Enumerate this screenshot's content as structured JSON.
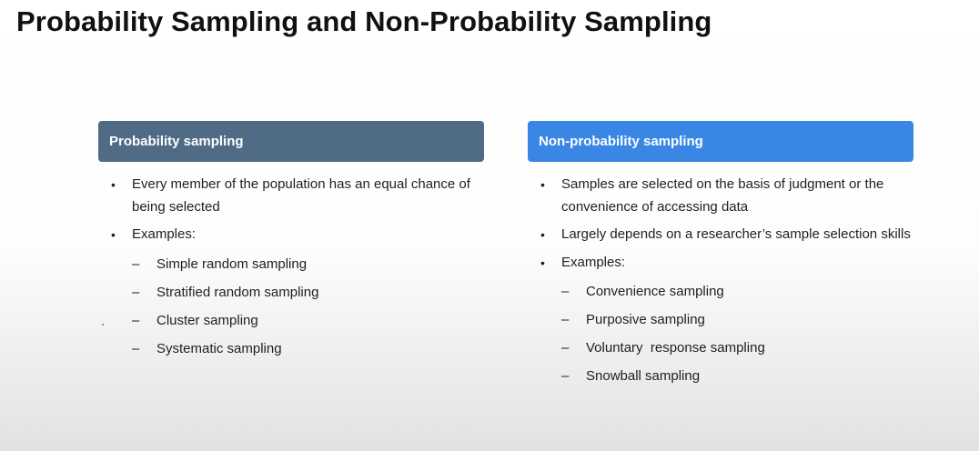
{
  "slide": {
    "title": "Probability Sampling and Non-Probability Sampling"
  },
  "left_column": {
    "header": "Probability sampling",
    "bullets": [
      "Every member of the population has an equal chance of being selected",
      "Examples:"
    ],
    "examples": [
      "Simple random sampling",
      "Stratified random sampling",
      "Cluster sampling",
      "Systematic sampling"
    ]
  },
  "right_column": {
    "header": "Non-probability sampling",
    "bullets": [
      "Samples are selected on the basis of judgment or the convenience of accessing data",
      "Largely depends on a researcher’s sample selection skills",
      "Examples:"
    ],
    "examples": [
      "Convenience sampling",
      "Purposive sampling",
      "Voluntary  response sampling",
      "Snowball sampling"
    ]
  },
  "symbols": {
    "bullet": "•",
    "dash": "–"
  },
  "colors": {
    "probability_header": "#4f6b85",
    "non_probability_header": "#3a86e5",
    "header_text": "#ffffff"
  }
}
